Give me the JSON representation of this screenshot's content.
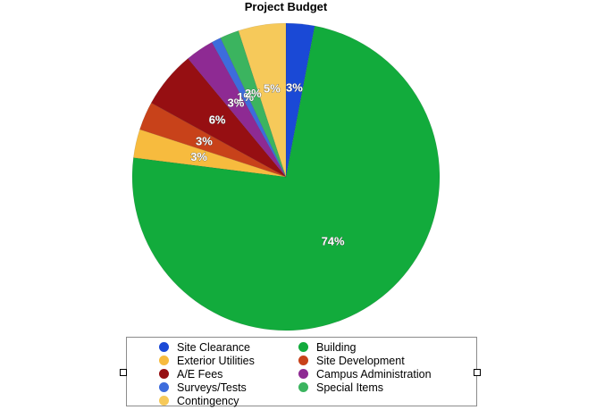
{
  "chart_data": {
    "type": "pie",
    "title": "Project Budget",
    "slices": [
      {
        "name": "Site Clearance",
        "value": 3,
        "label": "3%",
        "color": "#1a49d6"
      },
      {
        "name": "Building",
        "value": 74,
        "label": "74%",
        "color": "#12ab3c"
      },
      {
        "name": "Exterior Utilities",
        "value": 3,
        "label": "3%",
        "color": "#f7bb3e"
      },
      {
        "name": "Site Development",
        "value": 3,
        "label": "3%",
        "color": "#c8421a"
      },
      {
        "name": "A/E Fees",
        "value": 6,
        "label": "6%",
        "color": "#960f12"
      },
      {
        "name": "Campus Administration",
        "value": 3,
        "label": "3%",
        "color": "#8e2a93"
      },
      {
        "name": "Surveys/Tests",
        "value": 1,
        "label": "1%",
        "color": "#3d6cdc"
      },
      {
        "name": "Special Items",
        "value": 2,
        "label": "2%",
        "color": "#3bb45f"
      },
      {
        "name": "Contingency",
        "value": 5,
        "label": "5%",
        "color": "#f6c95a"
      }
    ],
    "legend": {
      "placement": "bottom",
      "items": [
        {
          "name": "Site Clearance",
          "color": "#1a49d6"
        },
        {
          "name": "Building",
          "color": "#12ab3c"
        },
        {
          "name": "Exterior Utilities",
          "color": "#f7bb3e"
        },
        {
          "name": "Site Development",
          "color": "#c8421a"
        },
        {
          "name": "A/E Fees",
          "color": "#960f12"
        },
        {
          "name": "Campus Administration",
          "color": "#8e2a93"
        },
        {
          "name": "Surveys/Tests",
          "color": "#3d6cdc"
        },
        {
          "name": "Special Items",
          "color": "#3bb45f"
        },
        {
          "name": "Contingency",
          "color": "#f6c95a"
        }
      ]
    }
  }
}
